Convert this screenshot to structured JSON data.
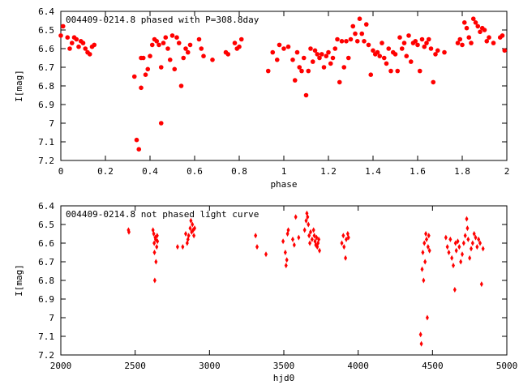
{
  "chart_data": [
    {
      "type": "scatter",
      "title": "004409-0214.8 phased with P=308.8day",
      "xlabel": "phase",
      "ylabel": "I[mag]",
      "xlim": [
        0,
        2
      ],
      "ylim": [
        7.2,
        6.4
      ],
      "y_inverted": true,
      "grid": false,
      "x_ticks": [
        "0",
        "0.2",
        "0.4",
        "0.6",
        "0.8",
        "1",
        "1.2",
        "1.4",
        "1.6",
        "1.8",
        "2"
      ],
      "y_ticks": [
        "6.4",
        "6.5",
        "6.6",
        "6.7",
        "6.8",
        "6.9",
        "7",
        "7.1",
        "7.2"
      ],
      "marker_color": "#ff0000",
      "points": [
        [
          0.0,
          6.53
        ],
        [
          0.01,
          6.48
        ],
        [
          0.03,
          6.54
        ],
        [
          0.04,
          6.6
        ],
        [
          0.05,
          6.57
        ],
        [
          0.06,
          6.54
        ],
        [
          0.07,
          6.55
        ],
        [
          0.08,
          6.59
        ],
        [
          0.09,
          6.56
        ],
        [
          0.1,
          6.57
        ],
        [
          0.11,
          6.6
        ],
        [
          0.12,
          6.62
        ],
        [
          0.13,
          6.63
        ],
        [
          0.15,
          6.58
        ],
        [
          0.14,
          6.59
        ],
        [
          0.33,
          6.75
        ],
        [
          0.34,
          7.09
        ],
        [
          0.35,
          7.14
        ],
        [
          0.36,
          6.65
        ],
        [
          0.36,
          6.81
        ],
        [
          0.37,
          6.65
        ],
        [
          0.38,
          6.74
        ],
        [
          0.39,
          6.71
        ],
        [
          0.4,
          6.64
        ],
        [
          0.41,
          6.58
        ],
        [
          0.42,
          6.55
        ],
        [
          0.43,
          6.56
        ],
        [
          0.44,
          6.58
        ],
        [
          0.45,
          6.7
        ],
        [
          0.45,
          7.0
        ],
        [
          0.46,
          6.57
        ],
        [
          0.47,
          6.54
        ],
        [
          0.48,
          6.6
        ],
        [
          0.49,
          6.66
        ],
        [
          0.5,
          6.53
        ],
        [
          0.51,
          6.71
        ],
        [
          0.52,
          6.54
        ],
        [
          0.53,
          6.57
        ],
        [
          0.54,
          6.8
        ],
        [
          0.55,
          6.65
        ],
        [
          0.56,
          6.6
        ],
        [
          0.57,
          6.62
        ],
        [
          0.58,
          6.58
        ],
        [
          0.62,
          6.55
        ],
        [
          0.63,
          6.6
        ],
        [
          0.64,
          6.64
        ],
        [
          0.68,
          6.66
        ],
        [
          0.74,
          6.62
        ],
        [
          0.75,
          6.63
        ],
        [
          0.78,
          6.57
        ],
        [
          0.79,
          6.6
        ],
        [
          0.8,
          6.59
        ],
        [
          0.81,
          6.55
        ],
        [
          0.93,
          6.72
        ],
        [
          0.95,
          6.62
        ],
        [
          0.97,
          6.66
        ],
        [
          0.98,
          6.58
        ],
        [
          1.0,
          6.6
        ],
        [
          1.02,
          6.59
        ],
        [
          1.04,
          6.66
        ],
        [
          1.05,
          6.77
        ],
        [
          1.06,
          6.62
        ],
        [
          1.07,
          6.7
        ],
        [
          1.08,
          6.72
        ],
        [
          1.09,
          6.65
        ],
        [
          1.1,
          6.85
        ],
        [
          1.11,
          6.72
        ],
        [
          1.12,
          6.6
        ],
        [
          1.13,
          6.67
        ],
        [
          1.14,
          6.61
        ],
        [
          1.15,
          6.63
        ],
        [
          1.16,
          6.65
        ],
        [
          1.17,
          6.63
        ],
        [
          1.18,
          6.7
        ],
        [
          1.19,
          6.64
        ],
        [
          1.2,
          6.62
        ],
        [
          1.21,
          6.68
        ],
        [
          1.22,
          6.65
        ],
        [
          1.23,
          6.6
        ],
        [
          1.24,
          6.55
        ],
        [
          1.25,
          6.78
        ],
        [
          1.26,
          6.56
        ],
        [
          1.27,
          6.7
        ],
        [
          1.28,
          6.56
        ],
        [
          1.29,
          6.65
        ],
        [
          1.3,
          6.55
        ],
        [
          1.31,
          6.48
        ],
        [
          1.32,
          6.52
        ],
        [
          1.33,
          6.56
        ],
        [
          1.34,
          6.44
        ],
        [
          1.35,
          6.52
        ],
        [
          1.36,
          6.56
        ],
        [
          1.37,
          6.47
        ],
        [
          1.38,
          6.58
        ],
        [
          1.39,
          6.74
        ],
        [
          1.4,
          6.61
        ],
        [
          1.41,
          6.63
        ],
        [
          1.42,
          6.62
        ],
        [
          1.43,
          6.64
        ],
        [
          1.44,
          6.57
        ],
        [
          1.45,
          6.65
        ],
        [
          1.46,
          6.68
        ],
        [
          1.47,
          6.6
        ],
        [
          1.48,
          6.72
        ],
        [
          1.49,
          6.62
        ],
        [
          1.5,
          6.63
        ],
        [
          1.51,
          6.72
        ],
        [
          1.52,
          6.54
        ],
        [
          1.53,
          6.6
        ],
        [
          1.54,
          6.57
        ],
        [
          1.55,
          6.64
        ],
        [
          1.56,
          6.53
        ],
        [
          1.57,
          6.67
        ],
        [
          1.58,
          6.57
        ],
        [
          1.59,
          6.56
        ],
        [
          1.6,
          6.58
        ],
        [
          1.61,
          6.72
        ],
        [
          1.62,
          6.55
        ],
        [
          1.63,
          6.59
        ],
        [
          1.64,
          6.57
        ],
        [
          1.65,
          6.55
        ],
        [
          1.66,
          6.6
        ],
        [
          1.67,
          6.78
        ],
        [
          1.68,
          6.63
        ],
        [
          1.69,
          6.61
        ],
        [
          1.72,
          6.62
        ],
        [
          1.78,
          6.57
        ],
        [
          1.79,
          6.55
        ],
        [
          1.8,
          6.58
        ],
        [
          1.81,
          6.46
        ],
        [
          1.82,
          6.49
        ],
        [
          1.83,
          6.54
        ],
        [
          1.84,
          6.57
        ],
        [
          1.85,
          6.44
        ],
        [
          1.86,
          6.46
        ],
        [
          1.87,
          6.48
        ],
        [
          1.88,
          6.51
        ],
        [
          1.89,
          6.49
        ],
        [
          1.9,
          6.5
        ],
        [
          1.91,
          6.56
        ],
        [
          1.92,
          6.54
        ],
        [
          1.94,
          6.57
        ],
        [
          1.97,
          6.54
        ],
        [
          1.98,
          6.53
        ],
        [
          1.99,
          6.61
        ]
      ]
    },
    {
      "type": "scatter",
      "title": "004409-0214.8 not phased light curve",
      "xlabel": "hjd0",
      "ylabel": "I[mag]",
      "xlim": [
        2000,
        5000
      ],
      "ylim": [
        7.2,
        6.4
      ],
      "y_inverted": true,
      "grid": false,
      "x_ticks": [
        "2000",
        "2500",
        "3000",
        "3500",
        "4000",
        "4500",
        "5000"
      ],
      "y_ticks": [
        "6.4",
        "6.5",
        "6.6",
        "6.7",
        "6.8",
        "6.9",
        "7",
        "7.1",
        "7.2"
      ],
      "marker_color": "#ff0000",
      "points": [
        [
          2455,
          6.53
        ],
        [
          2458,
          6.54
        ],
        [
          2620,
          6.53
        ],
        [
          2625,
          6.55
        ],
        [
          2628,
          6.6
        ],
        [
          2630,
          6.65
        ],
        [
          2632,
          6.8
        ],
        [
          2635,
          6.57
        ],
        [
          2638,
          6.58
        ],
        [
          2640,
          6.7
        ],
        [
          2645,
          6.62
        ],
        [
          2648,
          6.56
        ],
        [
          2650,
          6.59
        ],
        [
          2785,
          6.62
        ],
        [
          2820,
          6.62
        ],
        [
          2840,
          6.55
        ],
        [
          2850,
          6.6
        ],
        [
          2855,
          6.58
        ],
        [
          2860,
          6.56
        ],
        [
          2870,
          6.52
        ],
        [
          2875,
          6.48
        ],
        [
          2880,
          6.54
        ],
        [
          2885,
          6.5
        ],
        [
          2890,
          6.53
        ],
        [
          2895,
          6.56
        ],
        [
          2900,
          6.52
        ],
        [
          3310,
          6.56
        ],
        [
          3320,
          6.62
        ],
        [
          3380,
          6.66
        ],
        [
          3495,
          6.59
        ],
        [
          3510,
          6.65
        ],
        [
          3515,
          6.72
        ],
        [
          3520,
          6.69
        ],
        [
          3525,
          6.55
        ],
        [
          3530,
          6.53
        ],
        [
          3560,
          6.58
        ],
        [
          3570,
          6.61
        ],
        [
          3580,
          6.46
        ],
        [
          3600,
          6.57
        ],
        [
          3640,
          6.53
        ],
        [
          3650,
          6.48
        ],
        [
          3655,
          6.44
        ],
        [
          3660,
          6.46
        ],
        [
          3665,
          6.5
        ],
        [
          3670,
          6.56
        ],
        [
          3675,
          6.6
        ],
        [
          3680,
          6.54
        ],
        [
          3690,
          6.58
        ],
        [
          3700,
          6.53
        ],
        [
          3705,
          6.56
        ],
        [
          3710,
          6.59
        ],
        [
          3715,
          6.61
        ],
        [
          3720,
          6.57
        ],
        [
          3725,
          6.62
        ],
        [
          3730,
          6.6
        ],
        [
          3735,
          6.58
        ],
        [
          3740,
          6.64
        ],
        [
          3890,
          6.6
        ],
        [
          3900,
          6.56
        ],
        [
          3905,
          6.62
        ],
        [
          3915,
          6.68
        ],
        [
          3920,
          6.58
        ],
        [
          3930,
          6.55
        ],
        [
          3935,
          6.57
        ],
        [
          4420,
          7.09
        ],
        [
          4425,
          7.14
        ],
        [
          4430,
          6.74
        ],
        [
          4435,
          6.65
        ],
        [
          4440,
          6.8
        ],
        [
          4445,
          6.6
        ],
        [
          4450,
          6.7
        ],
        [
          4455,
          6.55
        ],
        [
          4460,
          6.58
        ],
        [
          4465,
          7.0
        ],
        [
          4470,
          6.62
        ],
        [
          4475,
          6.56
        ],
        [
          4480,
          6.64
        ],
        [
          4590,
          6.57
        ],
        [
          4600,
          6.62
        ],
        [
          4610,
          6.65
        ],
        [
          4620,
          6.58
        ],
        [
          4630,
          6.68
        ],
        [
          4640,
          6.72
        ],
        [
          4650,
          6.85
        ],
        [
          4655,
          6.6
        ],
        [
          4660,
          6.64
        ],
        [
          4670,
          6.59
        ],
        [
          4680,
          6.62
        ],
        [
          4690,
          6.7
        ],
        [
          4700,
          6.66
        ],
        [
          4710,
          6.6
        ],
        [
          4720,
          6.56
        ],
        [
          4730,
          6.47
        ],
        [
          4735,
          6.52
        ],
        [
          4740,
          6.58
        ],
        [
          4750,
          6.68
        ],
        [
          4760,
          6.63
        ],
        [
          4770,
          6.6
        ],
        [
          4780,
          6.55
        ],
        [
          4790,
          6.57
        ],
        [
          4800,
          6.62
        ],
        [
          4810,
          6.58
        ],
        [
          4820,
          6.6
        ],
        [
          4830,
          6.82
        ],
        [
          4840,
          6.63
        ]
      ]
    }
  ]
}
